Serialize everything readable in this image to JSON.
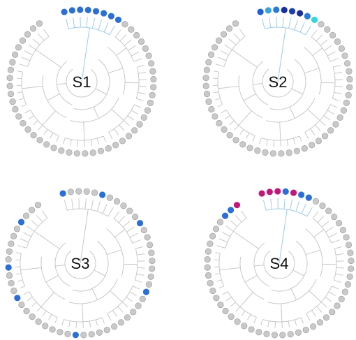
{
  "figure": {
    "colors": {
      "background": "#ffffff",
      "branch": "#c8c8c8",
      "branch_highlight": "#9fcbe8",
      "leaf_default": "#c9c9c9",
      "leaf_stroke": "#9a9a9a"
    },
    "panels": [
      {
        "label": "S1",
        "leaf_count": 54,
        "highlighted_leaves": [
          {
            "index": 0,
            "color": "#2b6fd6"
          },
          {
            "index": 1,
            "color": "#2b6fd6"
          },
          {
            "index": 2,
            "color": "#2b6fd6"
          },
          {
            "index": 3,
            "color": "#2b6fd6"
          },
          {
            "index": 4,
            "color": "#2b6fd6"
          },
          {
            "index": 5,
            "color": "#2b6fd6"
          },
          {
            "index": 6,
            "color": "#2b6fd6"
          },
          {
            "index": 7,
            "color": "#2b6fd6"
          }
        ]
      },
      {
        "label": "S2",
        "leaf_count": 54,
        "highlighted_leaves": [
          {
            "index": 0,
            "color": "#1f5fd0"
          },
          {
            "index": 1,
            "color": "#3aa3e0"
          },
          {
            "index": 2,
            "color": "#2a7bd8"
          },
          {
            "index": 3,
            "color": "#1a2f9c"
          },
          {
            "index": 4,
            "color": "#1c3fb0"
          },
          {
            "index": 5,
            "color": "#1a2f9c"
          },
          {
            "index": 6,
            "color": "#2a7bd8"
          },
          {
            "index": 7,
            "color": "#36d6d6"
          }
        ]
      },
      {
        "label": "S3",
        "leaf_count": 54,
        "highlighted_leaves": [
          {
            "index": 0,
            "color": "#2b6fd6"
          },
          {
            "index": 50,
            "color": "#2b6fd6"
          },
          {
            "index": 5,
            "color": "#2b6fd6"
          },
          {
            "index": 11,
            "color": "#2b6fd6"
          },
          {
            "index": 20,
            "color": "#2b6fd6"
          },
          {
            "index": 31,
            "color": "#2b6fd6"
          },
          {
            "index": 40,
            "color": "#2b6fd6"
          },
          {
            "index": 44,
            "color": "#2b6fd6"
          }
        ]
      },
      {
        "label": "S4",
        "leaf_count": 54,
        "highlighted_leaves": [
          {
            "index": 51,
            "color": "#2b6fd6"
          },
          {
            "index": 52,
            "color": "#2b6fd6"
          },
          {
            "index": 53,
            "color": "#c2187a"
          },
          {
            "index": 0,
            "color": "#c2187a"
          },
          {
            "index": 1,
            "color": "#c2187a"
          },
          {
            "index": 2,
            "color": "#c2187a"
          },
          {
            "index": 3,
            "color": "#2b6fd6"
          },
          {
            "index": 4,
            "color": "#c2187a"
          },
          {
            "index": 5,
            "color": "#2b6fd6"
          },
          {
            "index": 6,
            "color": "#2b6fd6"
          }
        ]
      }
    ]
  }
}
